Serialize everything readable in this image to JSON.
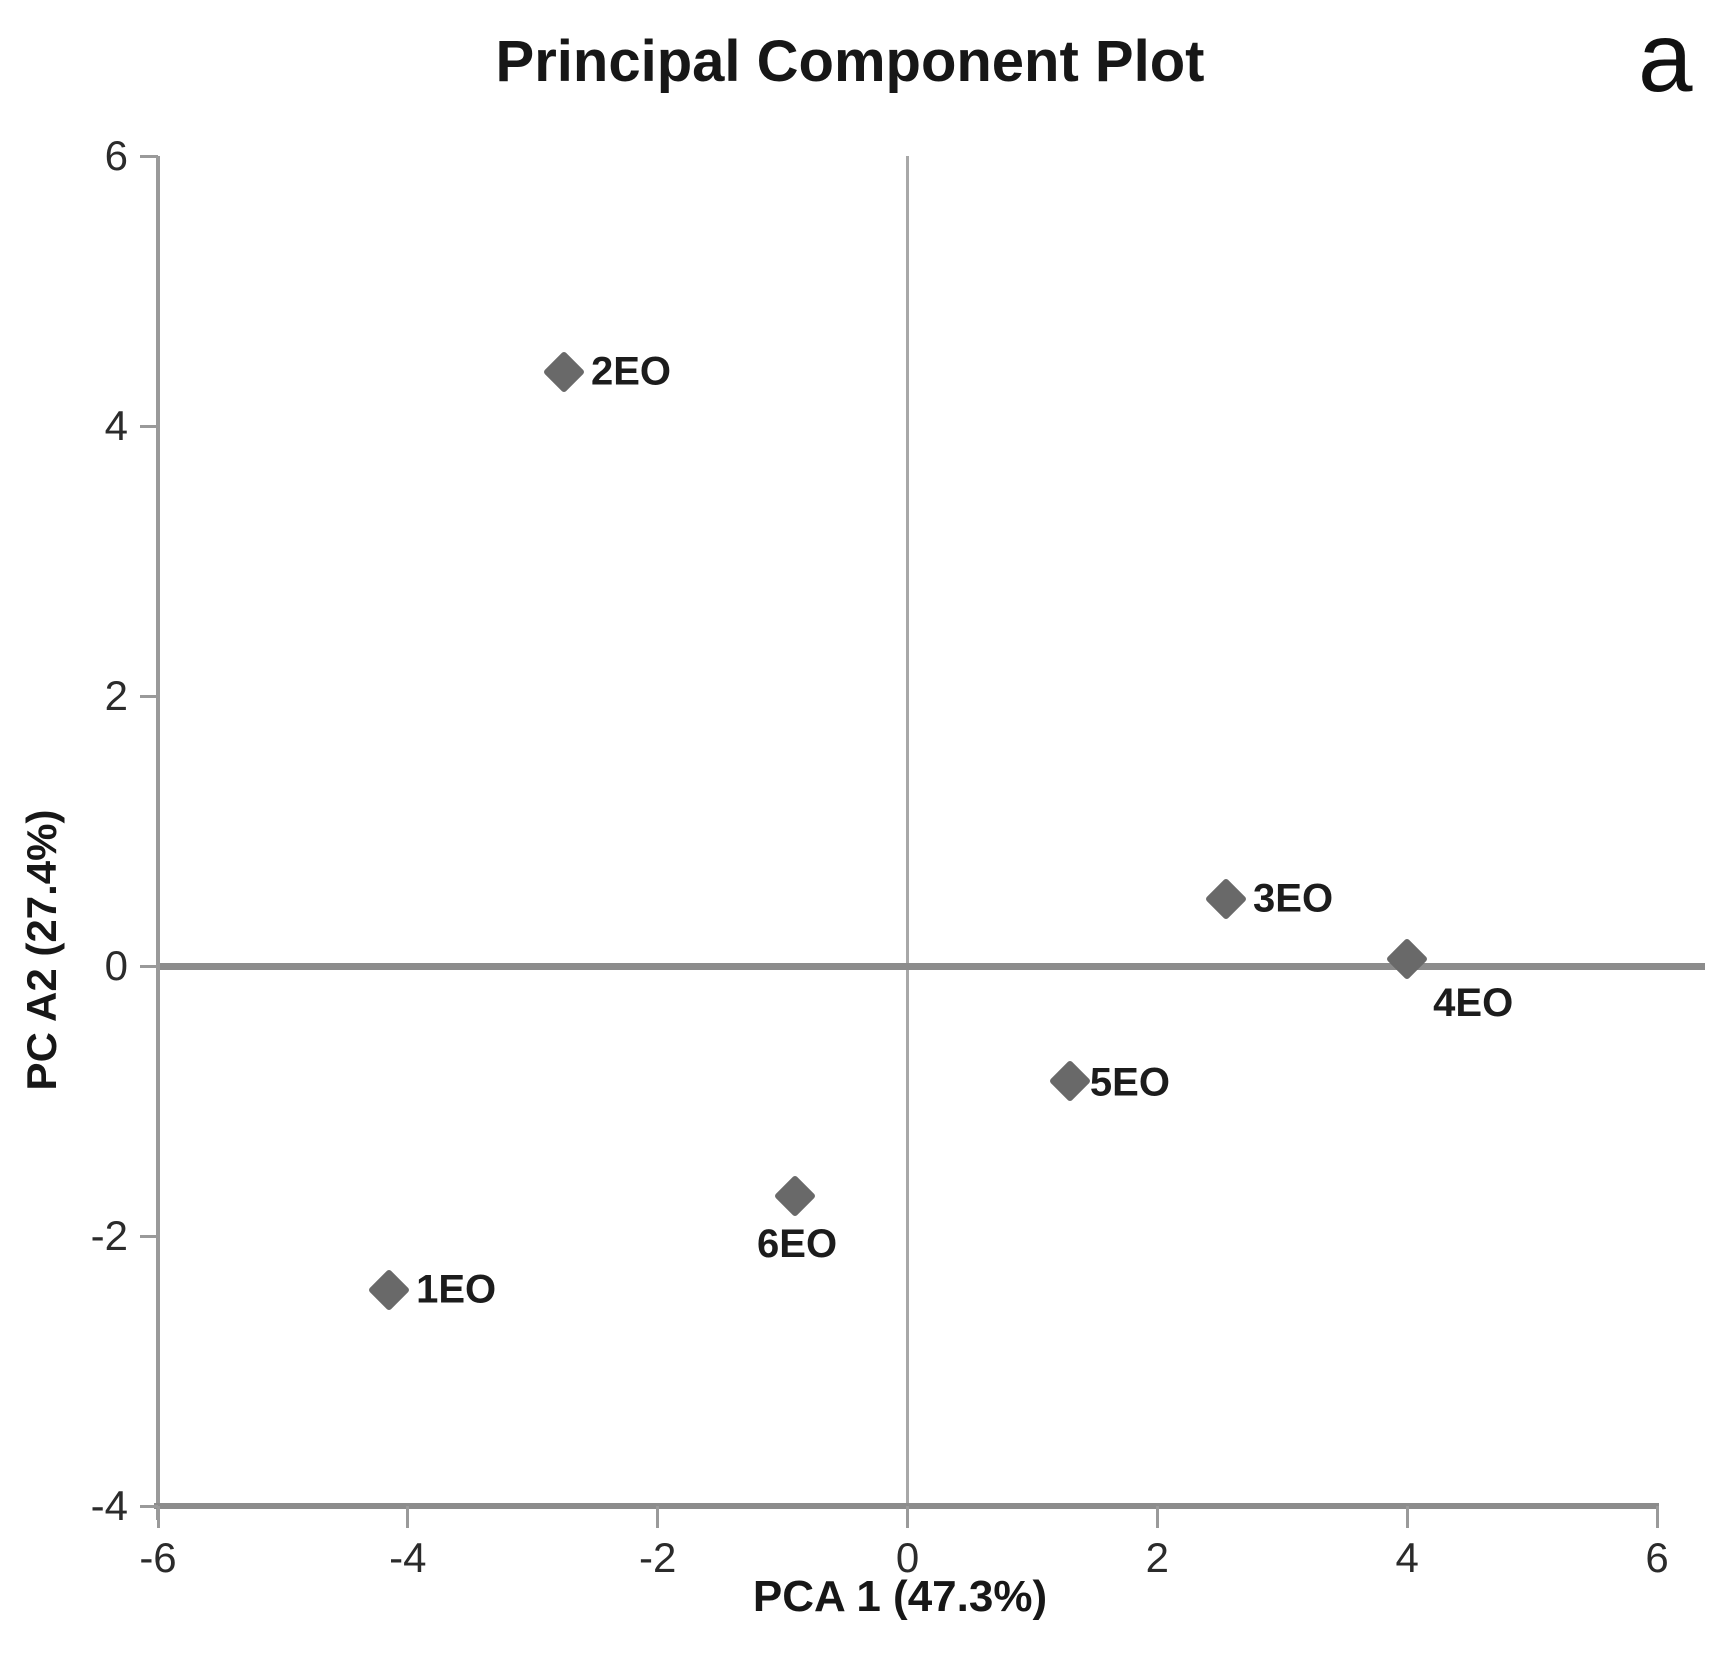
{
  "figure": {
    "corner_label": "a"
  },
  "chart_data": {
    "type": "scatter",
    "title": "Principal Component Plot",
    "xlabel": "PCA 1 (47.3%)",
    "ylabel": "PC A2 (27.4%)",
    "xlim": [
      -6,
      6
    ],
    "ylim": [
      -4,
      6
    ],
    "x_ticks": [
      -6,
      -4,
      -2,
      0,
      2,
      4,
      6
    ],
    "y_ticks": [
      -4,
      -2,
      0,
      2,
      4,
      6
    ],
    "grid": false,
    "legend": false,
    "zero_lines": true,
    "marker": "diamond",
    "marker_color": "#696969",
    "axis_color": "#9a9a9a",
    "points": [
      {
        "label": "1EO",
        "x": -4.15,
        "y": -2.4,
        "label_position": "right"
      },
      {
        "label": "2EO",
        "x": -2.75,
        "y": 4.4,
        "label_position": "right"
      },
      {
        "label": "3EO",
        "x": 2.55,
        "y": 0.5,
        "label_position": "right"
      },
      {
        "label": "4EO",
        "x": 4.0,
        "y": 0.05,
        "label_position": "below-right"
      },
      {
        "label": "5EO",
        "x": 1.3,
        "y": -0.85,
        "label_position": "right-tight"
      },
      {
        "label": "6EO",
        "x": -0.9,
        "y": -1.7,
        "label_position": "below"
      }
    ]
  }
}
